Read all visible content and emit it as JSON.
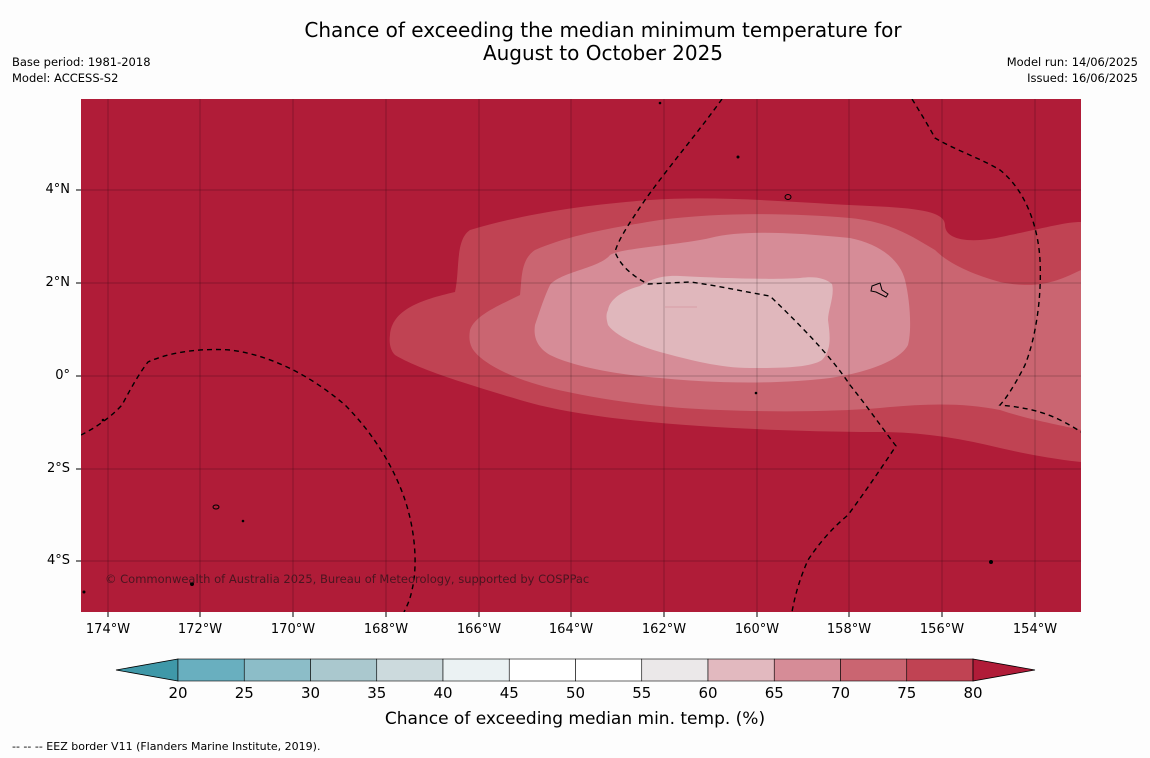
{
  "title_line1": "Chance of exceeding the median minimum temperature for",
  "title_line2": "August to October 2025",
  "meta_left": {
    "base_period": "Base period: 1981-2018",
    "model": "Model: ACCESS-S2"
  },
  "meta_right": {
    "model_run": "Model run: 14/06/2025",
    "issued": "Issued: 16/06/2025"
  },
  "lat_labels": [
    "4°N",
    "2°N",
    "0°",
    "2°S",
    "4°S"
  ],
  "lon_labels": [
    "174°W",
    "172°W",
    "170°W",
    "168°W",
    "166°W",
    "164°W",
    "162°W",
    "160°W",
    "158°W",
    "156°W",
    "154°W"
  ],
  "copyright": "© Commonwealth of Australia 2025, Bureau of Meteorology, supported by COSPPac",
  "colorbar": {
    "ticks": [
      "20",
      "25",
      "30",
      "35",
      "40",
      "45",
      "50",
      "55",
      "60",
      "65",
      "70",
      "75",
      "80"
    ],
    "label": "Chance of exceeding median min. temp. (%)",
    "colors": [
      "#3f98a8",
      "#69afbf",
      "#8cbdc8",
      "#aac8ce",
      "#ccdadd",
      "#ebf2f3",
      "#ffffff",
      "#ffffff",
      "#ebe8e9",
      "#e2b9bf",
      "#d68c97",
      "#ca6571",
      "#c04353",
      "#b01c38"
    ]
  },
  "footnote": "--  --  -- EEZ border V11 (Flanders Marine Institute, 2019).",
  "map_colors": {
    "band_80": "#b01c38",
    "band_75": "#c04353",
    "band_70": "#ca6571",
    "band_65": "#d68c97",
    "band_60": "#e0b7bc"
  }
}
